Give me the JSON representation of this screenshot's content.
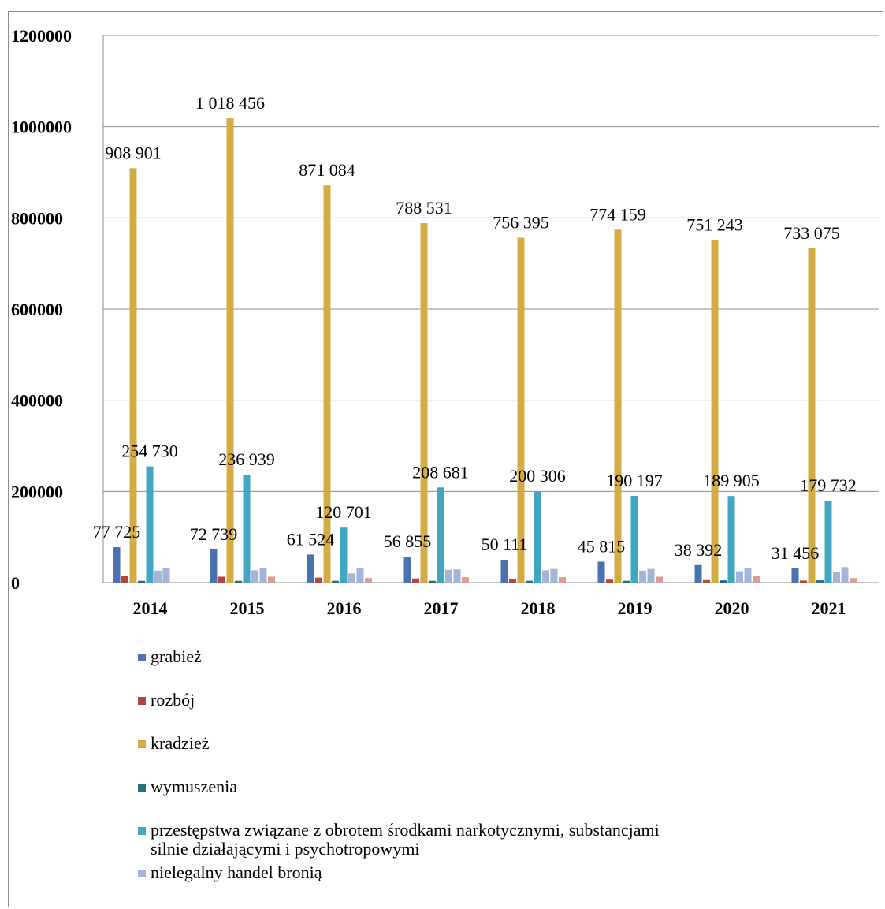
{
  "chart_data": {
    "type": "bar",
    "categories": [
      "2014",
      "2015",
      "2016",
      "2017",
      "2018",
      "2019",
      "2020",
      "2021"
    ],
    "ylim": [
      0,
      1200000
    ],
    "yticks": [
      0,
      200000,
      400000,
      600000,
      800000,
      1000000,
      1200000
    ],
    "grid": true,
    "legend_position": "bottom-left",
    "series": [
      {
        "name": "grabież",
        "color": "#4a72b0",
        "values": [
          77725,
          72739,
          61524,
          56855,
          50111,
          45815,
          38392,
          31456
        ],
        "labels": [
          "77 725",
          "72 739",
          "61 524",
          "56 855",
          "50 111",
          "45 815",
          "38 392",
          "31 456"
        ]
      },
      {
        "name": "rozbój",
        "color": "#b5473f",
        "values": [
          14000,
          13000,
          11000,
          9000,
          7500,
          6500,
          5500,
          4500
        ]
      },
      {
        "name": "kradzież",
        "color": "#d4ac45",
        "values": [
          908901,
          1018456,
          871084,
          788531,
          756395,
          774159,
          751243,
          733075
        ],
        "labels": [
          "908 901",
          "1 018 456",
          "871 084",
          "788 531",
          "756 395",
          "774 159",
          "751 243",
          "733 075"
        ]
      },
      {
        "name": "wymuszenia",
        "color": "#2a6d7e",
        "values": [
          4000,
          4000,
          4000,
          4000,
          4000,
          4000,
          5000,
          5000
        ]
      },
      {
        "name": "przestępstwa związane z  obrotem środkami narkotycznymi, substancjami\nsilnie działającymi i psychotropowymi",
        "color": "#43a6c0",
        "values": [
          254730,
          236939,
          120701,
          208681,
          200306,
          190197,
          189905,
          179732
        ],
        "labels": [
          "254 730",
          "236 939",
          "120 701",
          "208 681",
          "200 306",
          "190 197",
          "189 905",
          "179 732"
        ]
      },
      {
        "name": "nielegalny handel bronią",
        "color": "#a3b5d8",
        "values": [
          26000,
          27000,
          20000,
          28000,
          27000,
          26000,
          25000,
          24000
        ]
      },
      {
        "name": "",
        "color": "#a3b5d8",
        "values": [
          32000,
          32000,
          32000,
          29000,
          30000,
          30000,
          31000,
          34000
        ]
      },
      {
        "name": "",
        "color": "#dd9b96",
        "values": [
          0,
          13000,
          10000,
          12000,
          12000,
          13000,
          14000,
          10000
        ]
      }
    ]
  }
}
